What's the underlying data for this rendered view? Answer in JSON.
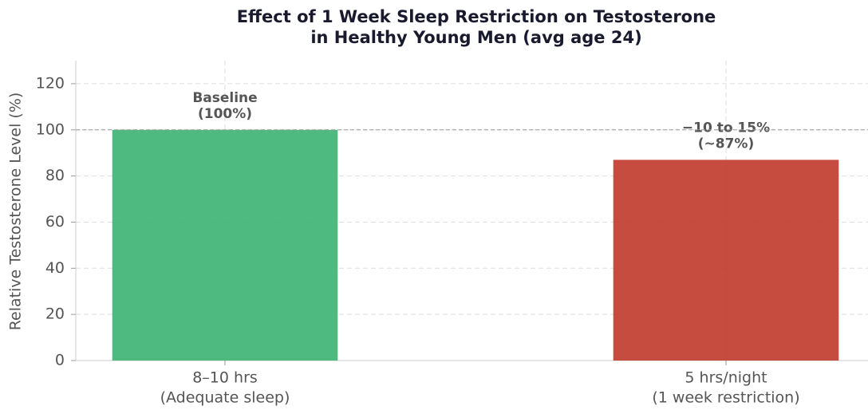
{
  "chart_data": {
    "type": "bar",
    "title": [
      "Effect of 1 Week Sleep Restriction on Testosterone",
      "in Healthy Young Men (avg age 24)"
    ],
    "ylabel": "Relative Testosterone Level (%)",
    "categories": [
      [
        "8–10 hrs",
        "(Adequate sleep)"
      ],
      [
        "5 hrs/night",
        "(1 week restriction)"
      ]
    ],
    "values": [
      100,
      87
    ],
    "value_labels": [
      [
        "Baseline",
        "(100%)"
      ],
      [
        "−10 to 15%",
        "(~87%)"
      ]
    ],
    "colors": [
      "#3cb371",
      "#c0392b"
    ],
    "ylim": [
      0,
      130
    ],
    "yticks": [
      0,
      20,
      40,
      60,
      80,
      100,
      120
    ],
    "reference_line": 100,
    "grid": true
  }
}
